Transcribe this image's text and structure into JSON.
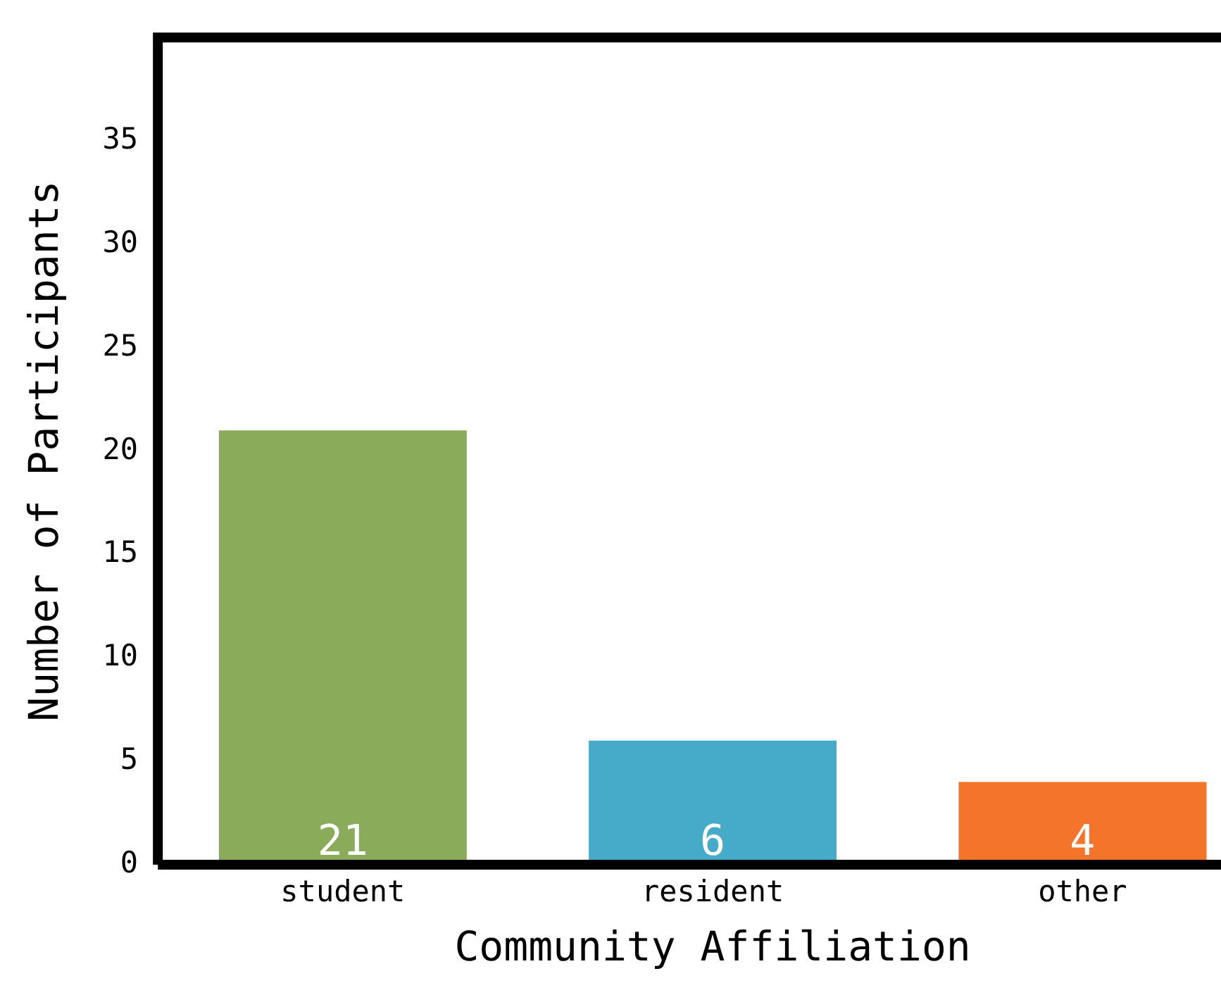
{
  "chart_data": {
    "type": "bar",
    "xlabel": "Community Affiliation",
    "ylabel": "Number of Participants",
    "categories": [
      "student",
      "resident",
      "other"
    ],
    "values": [
      21,
      6,
      4
    ],
    "colors": [
      "#8aab5a",
      "#45abc8",
      "#f5742c"
    ],
    "ylim": [
      0,
      40
    ],
    "yticks": [
      0,
      5,
      10,
      15,
      20,
      25,
      30,
      35
    ],
    "grid": false,
    "legend": false,
    "data_labels": true
  }
}
